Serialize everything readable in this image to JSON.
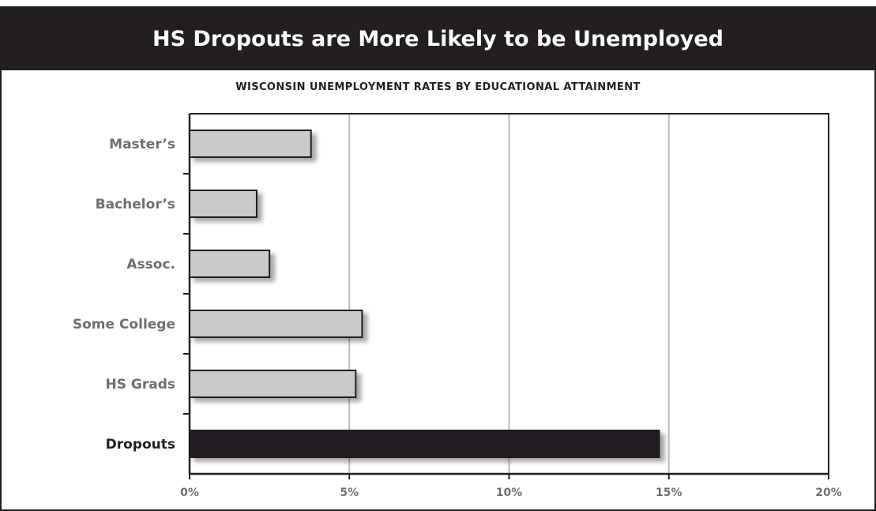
{
  "title": "HS Dropouts are More Likely to be Unemployed",
  "subtitle": "WISCONSIN UNEMPLOYMENT RATES BY EDUCATIONAL ATTAINMENT",
  "colors": {
    "header_bg": "#231f20",
    "bar_default": "#c8c9cb",
    "bar_highlight": "#231f20",
    "gridline": "#bcbdc0",
    "label_default": "#6d6e71",
    "label_highlight": "#231f20"
  },
  "chart_data": {
    "type": "bar",
    "orientation": "horizontal",
    "title": "HS Dropouts are More Likely to be Unemployed",
    "subtitle": "WISCONSIN UNEMPLOYMENT RATES BY EDUCATIONAL ATTAINMENT",
    "categories": [
      "Master’s",
      "Bachelor’s",
      "Assoc.",
      "Some College",
      "HS Grads",
      "Dropouts"
    ],
    "values": [
      3.8,
      2.1,
      2.5,
      5.4,
      5.2,
      14.7
    ],
    "highlight": "Dropouts",
    "xlim": [
      0,
      20
    ],
    "xticks": [
      0,
      5,
      10,
      15,
      20
    ],
    "xtick_labels": [
      "0%",
      "5%",
      "10%",
      "15%",
      "20%"
    ],
    "grid": true,
    "unit": "%"
  }
}
